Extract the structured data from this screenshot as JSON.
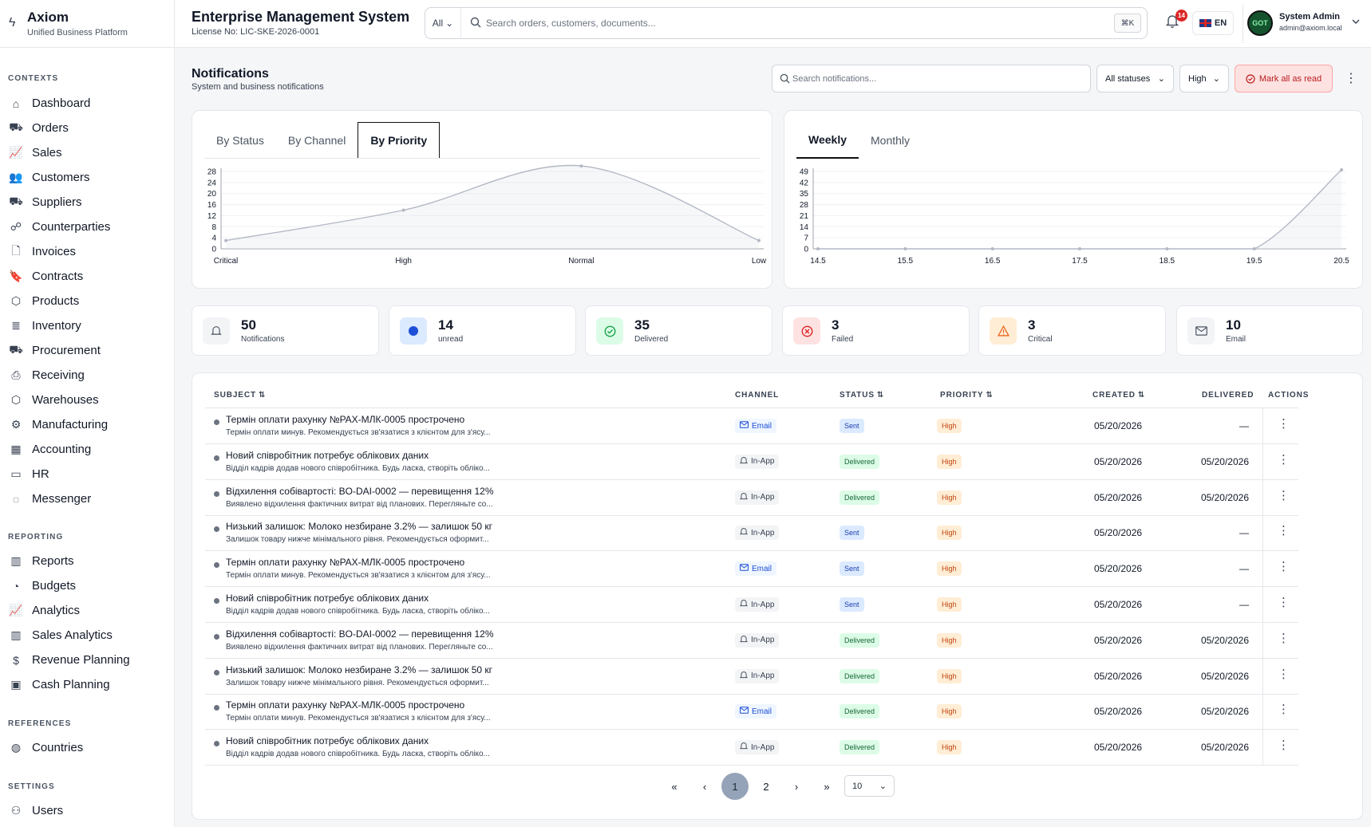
{
  "app": {
    "name": "Axiom",
    "tagline": "Unified Business Platform"
  },
  "header": {
    "title": "Enterprise Management System",
    "license": "License No: LIC-SKE-2026-0001",
    "search_scope": "All",
    "search_placeholder": "Search orders, customers, documents...",
    "shortcut": "⌘K",
    "notif_count": "14",
    "language": "EN",
    "user_name": "System Admin",
    "user_email": "admin@axiom.local"
  },
  "sidebar": {
    "contexts_label": "CONTEXTS",
    "contexts": [
      "Dashboard",
      "Orders",
      "Sales",
      "Customers",
      "Suppliers",
      "Counterparties",
      "Invoices",
      "Contracts",
      "Products",
      "Inventory",
      "Procurement",
      "Receiving",
      "Warehouses",
      "Manufacturing",
      "Accounting",
      "HR",
      "Messenger"
    ],
    "reporting_label": "REPORTING",
    "reporting": [
      "Reports",
      "Budgets",
      "Analytics",
      "Sales Analytics",
      "Revenue Planning",
      "Cash Planning"
    ],
    "references_label": "REFERENCES",
    "references": [
      "Countries"
    ],
    "settings_label": "SETTINGS",
    "settings": [
      "Users"
    ]
  },
  "page": {
    "title": "Notifications",
    "subtitle": "System and business notifications",
    "search_placeholder": "Search notifications...",
    "status_filter": "All statuses",
    "priority_filter": "High",
    "mark_all": "Mark all as read"
  },
  "chart_tabs": {
    "left": [
      "By Status",
      "By Channel",
      "By Priority"
    ],
    "left_active": "By Priority",
    "right": [
      "Weekly",
      "Monthly"
    ],
    "right_active": "Weekly"
  },
  "chart_data": [
    {
      "type": "line",
      "categories": [
        "Critical",
        "High",
        "Normal",
        "Low"
      ],
      "values": [
        3,
        14,
        30,
        3
      ],
      "ylim": [
        0,
        28
      ],
      "yticks": [
        0,
        4,
        8,
        12,
        16,
        20,
        24,
        28
      ],
      "grid": true,
      "area": true
    },
    {
      "type": "line",
      "x": [
        14.5,
        15.5,
        16.5,
        17.5,
        18.5,
        19.5,
        20.5
      ],
      "values": [
        0,
        0,
        0,
        0,
        0,
        0,
        50
      ],
      "ylim": [
        0,
        49
      ],
      "yticks": [
        0,
        7,
        14,
        21,
        28,
        35,
        42,
        49
      ],
      "grid": true,
      "area": true
    }
  ],
  "stats": [
    {
      "value": "50",
      "label": "Notifications",
      "icon": "bell-icon",
      "color": "#f3f4f6"
    },
    {
      "value": "14",
      "label": "unread",
      "icon": "dot-icon",
      "color": "#dbeafe"
    },
    {
      "value": "35",
      "label": "Delivered",
      "icon": "check-circle-icon",
      "color": "#dcfce7"
    },
    {
      "value": "3",
      "label": "Failed",
      "icon": "x-circle-icon",
      "color": "#fee2e2"
    },
    {
      "value": "3",
      "label": "Critical",
      "icon": "warning-icon",
      "color": "#ffedd5"
    },
    {
      "value": "10",
      "label": "Email",
      "icon": "mail-icon",
      "color": "#f3f4f6"
    }
  ],
  "table": {
    "columns": {
      "subject": "SUBJECT",
      "channel": "CHANNEL",
      "status": "STATUS",
      "priority": "PRIORITY",
      "created": "CREATED",
      "delivered": "DELIVERED",
      "actions": "ACTIONS"
    },
    "rows": [
      {
        "subject": "Термін оплати рахунку №PAX-МЛК-0005 прострочено",
        "desc": "Термін оплати минув. Рекомендується зв'язатися з клієнтом для з'ясу...",
        "channel": "Email",
        "status": "Sent",
        "priority": "High",
        "created": "05/20/2026",
        "delivered": "—"
      },
      {
        "subject": "Новий співробітник потребує облікових даних",
        "desc": "Відділ кадрів додав нового співробітника. Будь ласка, створіть обліко...",
        "channel": "In-App",
        "status": "Delivered",
        "priority": "High",
        "created": "05/20/2026",
        "delivered": "05/20/2026"
      },
      {
        "subject": "Відхилення собівартості: BO-DAI-0002 — перевищення 12%",
        "desc": "Виявлено відхилення фактичних витрат від планових. Перегляньте со...",
        "channel": "In-App",
        "status": "Delivered",
        "priority": "High",
        "created": "05/20/2026",
        "delivered": "05/20/2026"
      },
      {
        "subject": "Низький залишок: Молоко незбиране 3.2% — залишок 50 кг",
        "desc": "Залишок товару нижче мінімального рівня. Рекомендується оформит...",
        "channel": "In-App",
        "status": "Sent",
        "priority": "High",
        "created": "05/20/2026",
        "delivered": "—"
      },
      {
        "subject": "Термін оплати рахунку №PAX-МЛК-0005 прострочено",
        "desc": "Термін оплати минув. Рекомендується зв'язатися з клієнтом для з'ясу...",
        "channel": "Email",
        "status": "Sent",
        "priority": "High",
        "created": "05/20/2026",
        "delivered": "—"
      },
      {
        "subject": "Новий співробітник потребує облікових даних",
        "desc": "Відділ кадрів додав нового співробітника. Будь ласка, створіть обліко...",
        "channel": "In-App",
        "status": "Sent",
        "priority": "High",
        "created": "05/20/2026",
        "delivered": "—"
      },
      {
        "subject": "Відхилення собівартості: BO-DAI-0002 — перевищення 12%",
        "desc": "Виявлено відхилення фактичних витрат від планових. Перегляньте со...",
        "channel": "In-App",
        "status": "Delivered",
        "priority": "High",
        "created": "05/20/2026",
        "delivered": "05/20/2026"
      },
      {
        "subject": "Низький залишок: Молоко незбиране 3.2% — залишок 50 кг",
        "desc": "Залишок товару нижче мінімального рівня. Рекомендується оформит...",
        "channel": "In-App",
        "status": "Delivered",
        "priority": "High",
        "created": "05/20/2026",
        "delivered": "05/20/2026"
      },
      {
        "subject": "Термін оплати рахунку №PAX-МЛК-0005 прострочено",
        "desc": "Термін оплати минув. Рекомендується зв'язатися з клієнтом для з'ясу...",
        "channel": "Email",
        "status": "Delivered",
        "priority": "High",
        "created": "05/20/2026",
        "delivered": "05/20/2026"
      },
      {
        "subject": "Новий співробітник потребує облікових даних",
        "desc": "Відділ кадрів додав нового співробітника. Будь ласка, створіть обліко...",
        "channel": "In-App",
        "status": "Delivered",
        "priority": "High",
        "created": "05/20/2026",
        "delivered": "05/20/2026"
      }
    ]
  },
  "pagination": {
    "pages": [
      "1",
      "2"
    ],
    "current": "1",
    "page_size": "10"
  }
}
